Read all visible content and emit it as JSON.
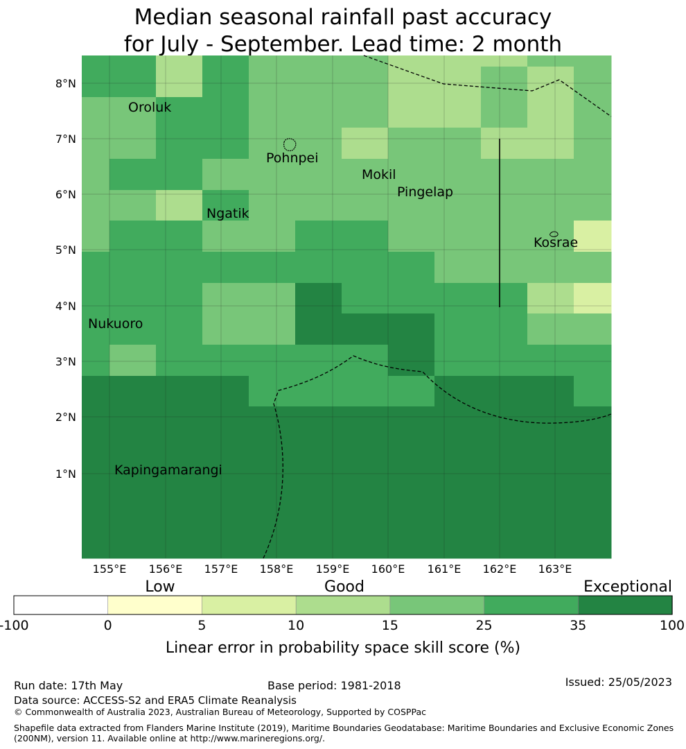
{
  "title": {
    "line1": "Median seasonal rainfall past accuracy",
    "line2": "for July - September. Lead time: 2 month"
  },
  "map": {
    "lon_ticks": [
      "155°E",
      "156°E",
      "157°E",
      "158°E",
      "159°E",
      "160°E",
      "161°E",
      "162°E",
      "163°E"
    ],
    "lat_ticks": [
      "8°N",
      "7°N",
      "6°N",
      "5°N",
      "4°N",
      "3°N",
      "2°N",
      "1°N"
    ],
    "places": [
      {
        "name": "Oroluk"
      },
      {
        "name": "Pohnpei"
      },
      {
        "name": "Mokil"
      },
      {
        "name": "Pingelap"
      },
      {
        "name": "Ngatik"
      },
      {
        "name": "Kosrae"
      },
      {
        "name": "Nukuoro"
      },
      {
        "name": "Kapingamarangi"
      }
    ]
  },
  "colorbar": {
    "category_labels": [
      "Low",
      "Good",
      "Exceptional"
    ],
    "ticks": [
      "-100",
      "0",
      "5",
      "10",
      "15",
      "25",
      "35",
      "100"
    ],
    "colors": [
      "#ffffff",
      "#ffffcc",
      "#d9f0a3",
      "#addd8e",
      "#78c679",
      "#41ab5d",
      "#238443"
    ],
    "label": "Linear error in probability space skill score (%)"
  },
  "footer": {
    "run_date": "Run date: 17th May",
    "base_period": "Base period: 1981-2018",
    "issued": "Issued: 25/05/2023",
    "data_source": "Data source: ACCESS-S2 and ERA5 Climate Reanalysis",
    "copyright": "© Commonwealth of Australia 2023, Australian Bureau of Meteorology, Supported by COSPPac",
    "shapefile_line1": "Shapefile data extracted from Flanders Marine Institute (2019), Maritime Boundaries Geodatabase: Maritime Boundaries and Exclusive Economic Zones",
    "shapefile_line2": "(200NM), version 11. Available online at http://www.marineregions.org/."
  }
}
